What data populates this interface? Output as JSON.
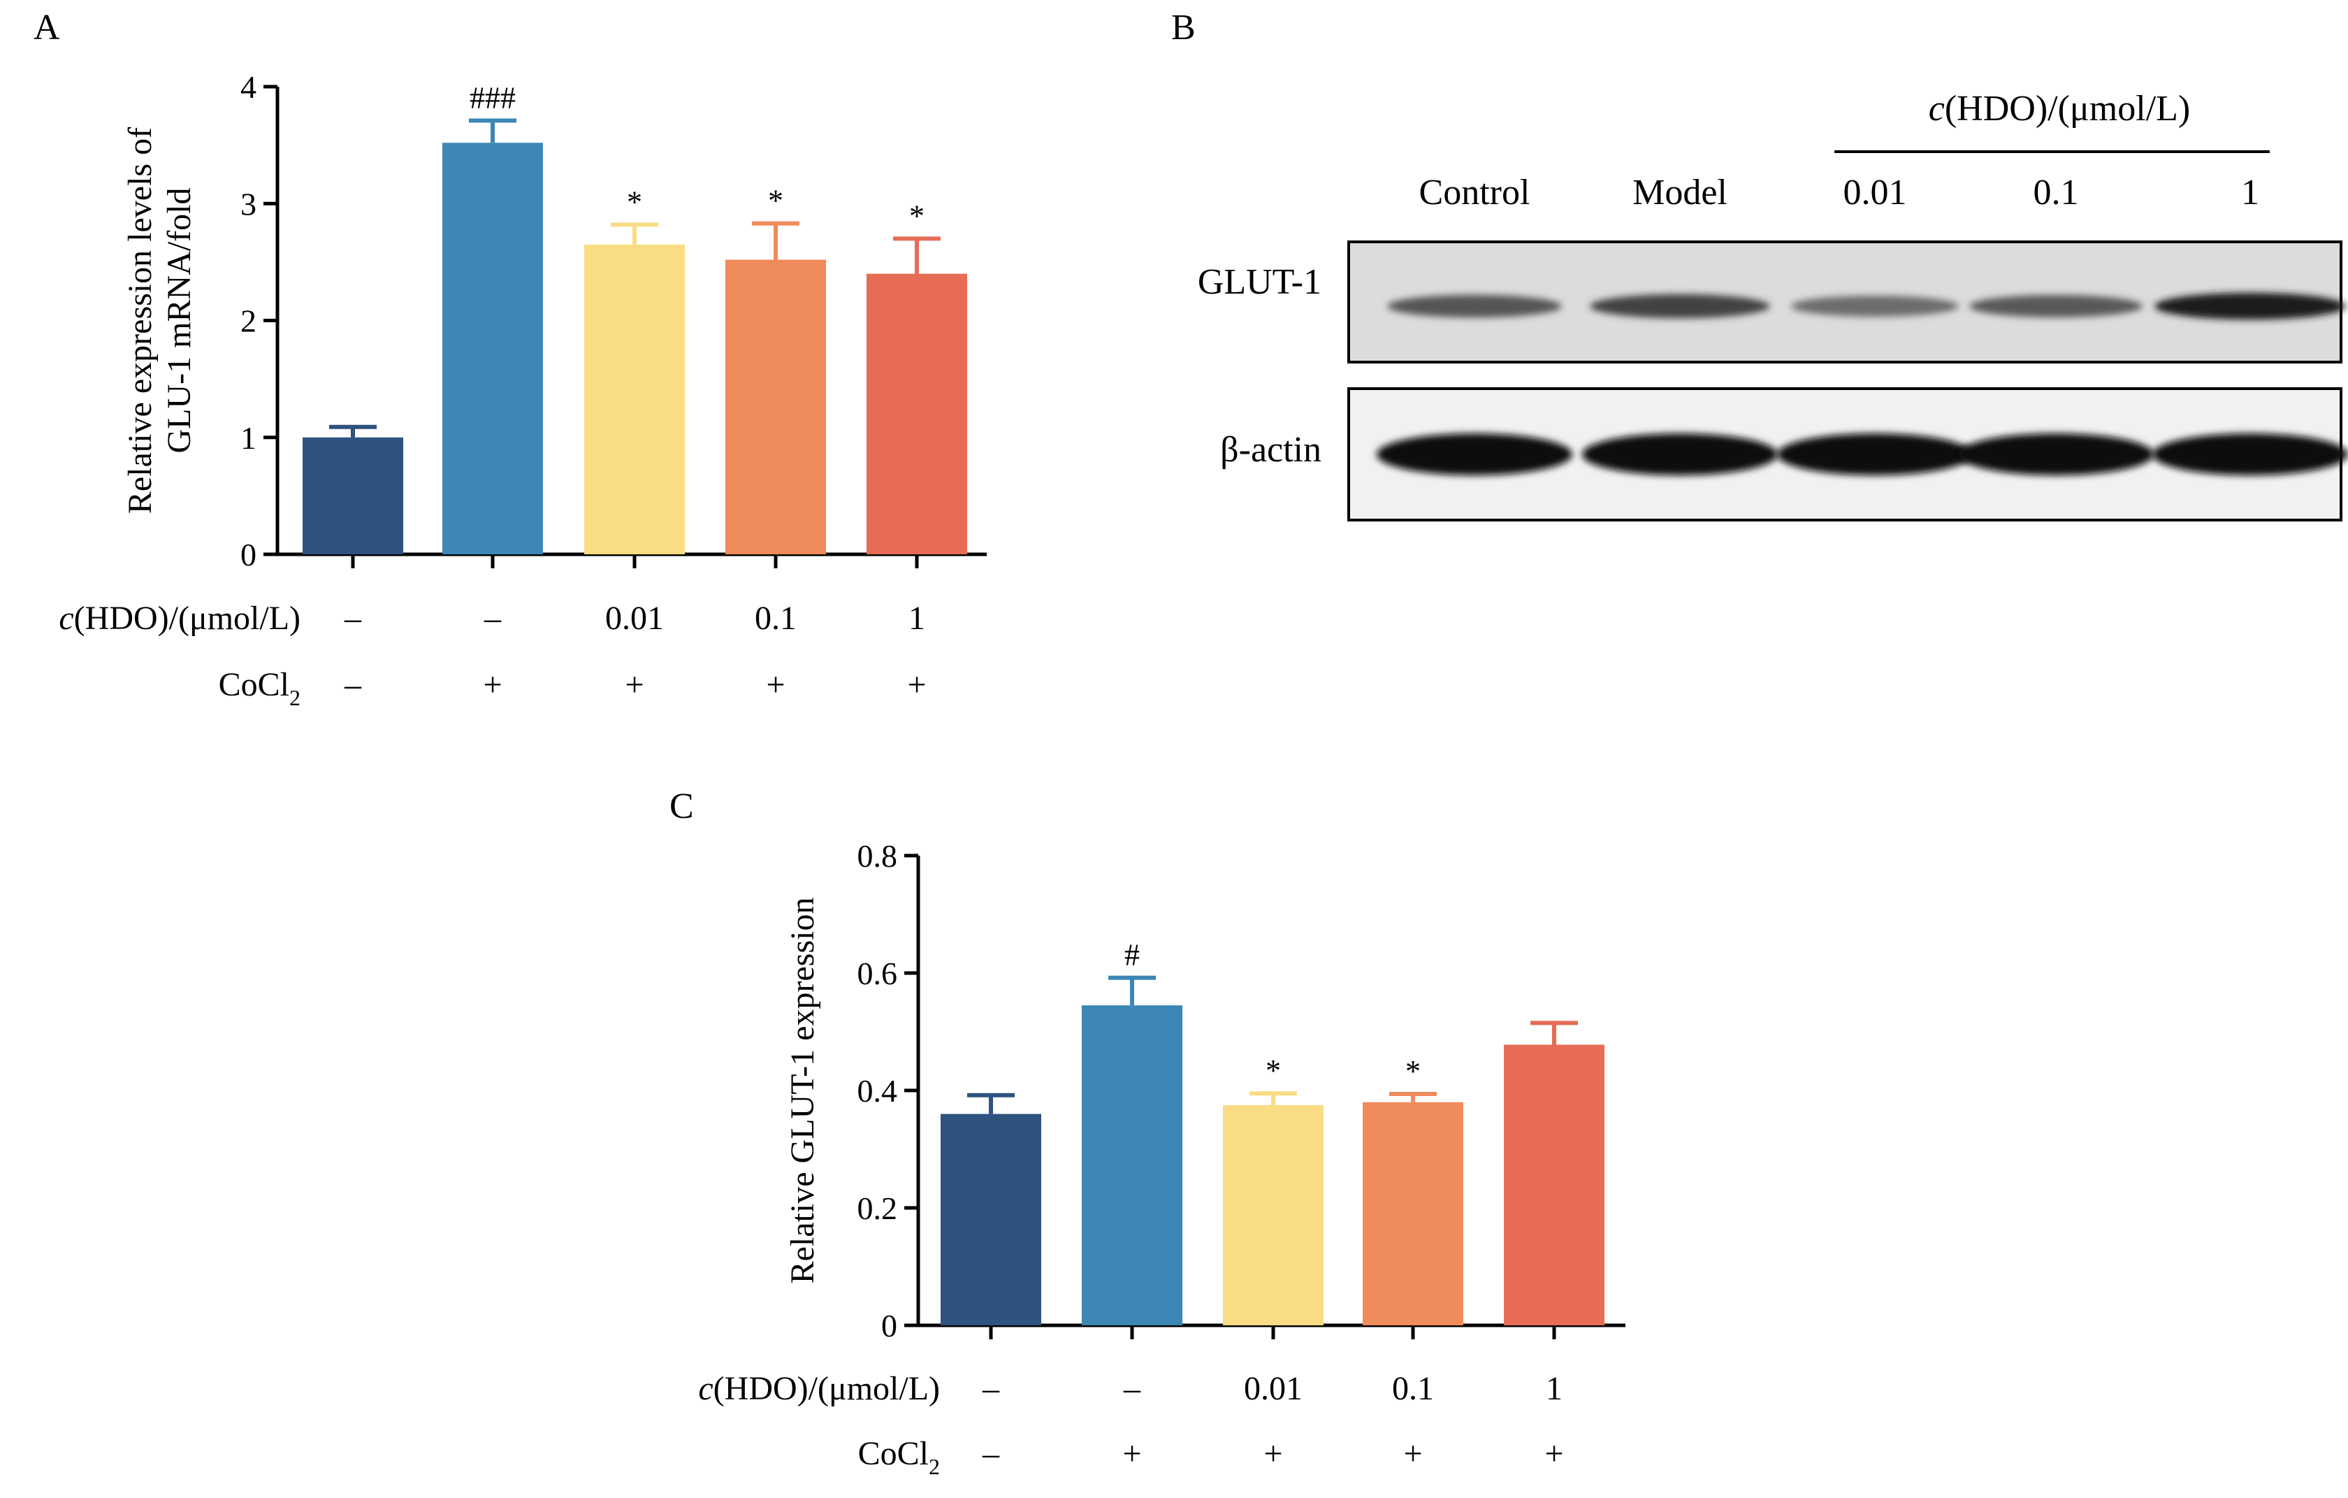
{
  "panels": {
    "A": "A",
    "B": "B",
    "C": "C"
  },
  "chart_data": [
    {
      "type": "bar",
      "panel": "A",
      "ylabel": [
        "Relative expression levels of",
        "GLU-1 mRNA/fold"
      ],
      "ylim": [
        0,
        4
      ],
      "yticks": [
        "0",
        "1",
        "2",
        "3",
        "4"
      ],
      "categories": [
        "Control",
        "Model",
        "0.01",
        "0.1",
        "1"
      ],
      "values": [
        1.0,
        3.52,
        2.65,
        2.52,
        2.4
      ],
      "errors": [
        0.09,
        0.19,
        0.17,
        0.31,
        0.3
      ],
      "significance": [
        "",
        "###",
        "*",
        "*",
        "*"
      ],
      "row_labels": {
        "hdo_italic": "c",
        "hdo_rest": "(HDO)/(μmol/L)",
        "cocl2": "CoCl",
        "cocl2_sub": "2"
      },
      "hdo_values": [
        "–",
        "–",
        "0.01",
        "0.1",
        "1"
      ],
      "cocl2_values": [
        "–",
        "+",
        "+",
        "+",
        "+"
      ]
    },
    {
      "type": "bar",
      "panel": "C",
      "ylabel": [
        "Relative GLUT-1 expression"
      ],
      "ylim": [
        0,
        0.8
      ],
      "yticks": [
        "0",
        "0.2",
        "0.4",
        "0.6",
        "0.8"
      ],
      "categories": [
        "Control",
        "Model",
        "0.01",
        "0.1",
        "1"
      ],
      "values": [
        0.36,
        0.545,
        0.375,
        0.38,
        0.478
      ],
      "errors": [
        0.032,
        0.047,
        0.02,
        0.014,
        0.037
      ],
      "significance": [
        "",
        "#",
        "*",
        "*",
        ""
      ],
      "row_labels": {
        "hdo_italic": "c",
        "hdo_rest": "(HDO)/(μmol/L)",
        "cocl2": "CoCl",
        "cocl2_sub": "2"
      },
      "hdo_values": [
        "–",
        "–",
        "0.01",
        "0.1",
        "1"
      ],
      "cocl2_values": [
        "–",
        "+",
        "+",
        "+",
        "+"
      ]
    }
  ],
  "colors": [
    "#2f527f",
    "#3c87b5",
    "#f9dc84",
    "#f08b5b",
    "#e66c55"
  ],
  "blot": {
    "header_italic": "c",
    "header_rest": "(HDO)/(μmol/L)",
    "lanes": [
      "Control",
      "Model",
      "0.01",
      "0.1",
      "1"
    ],
    "rows": [
      "GLUT-1",
      "β-actin"
    ],
    "glut1_intensity": [
      0.62,
      0.72,
      0.5,
      0.6,
      0.92
    ],
    "actin_intensity": [
      0.95,
      0.97,
      0.97,
      0.96,
      0.94
    ]
  }
}
